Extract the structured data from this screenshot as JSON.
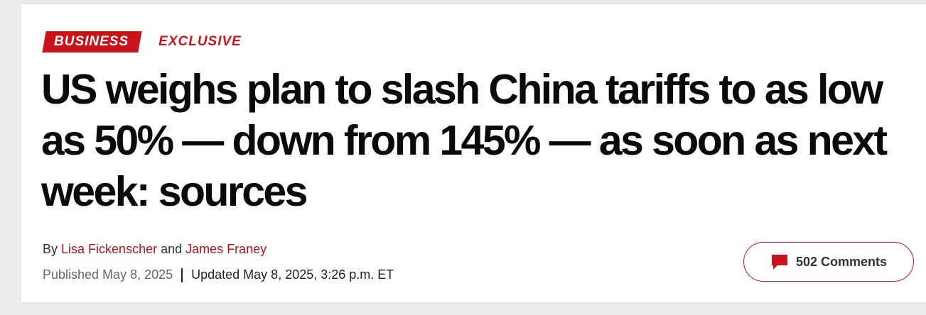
{
  "tags": {
    "section": "BUSINESS",
    "exclusive": "EXCLUSIVE"
  },
  "headline": "US weighs plan to slash China tariffs to as low as 50% — down from 145% — as soon as next week: sources",
  "byline": {
    "prefix": "By",
    "author1": "Lisa Fickenscher",
    "joiner": "and",
    "author2": "James Franey"
  },
  "dates": {
    "published": "Published May 8, 2025",
    "updated": "Updated May 8, 2025, 3:26 p.m. ET"
  },
  "comments": {
    "label": "502 Comments",
    "icon": "comment-bubble-icon"
  },
  "colors": {
    "brand_red": "#c8141b",
    "headline": "#0a0a0a"
  }
}
